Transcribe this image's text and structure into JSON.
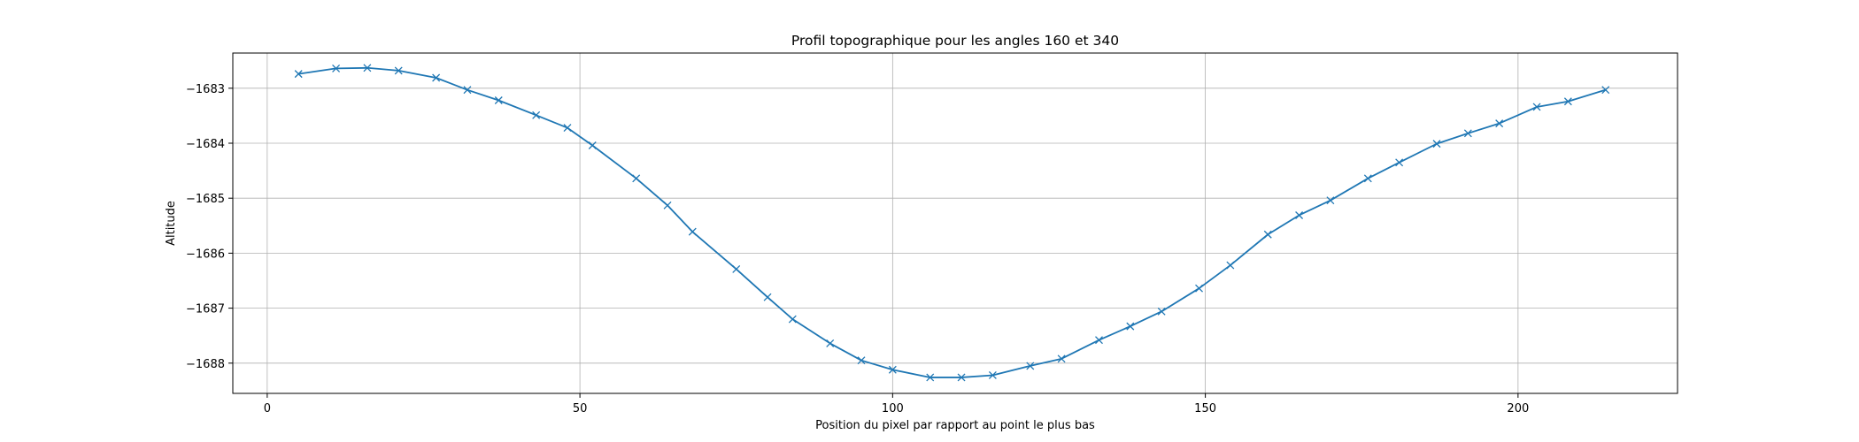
{
  "chart_data": {
    "type": "line",
    "title": "Profil topographique pour les angles 160 et 340",
    "xlabel": "Position du pixel par rapport au point le plus bas",
    "ylabel": "Altitude",
    "xlim": [
      -5.5,
      225.5
    ],
    "ylim": [
      -1688.55,
      -1682.36
    ],
    "xticks": [
      0,
      50,
      100,
      150,
      200
    ],
    "yticks": [
      -1688,
      -1687,
      -1686,
      -1685,
      -1684,
      -1683
    ],
    "xtick_labels": [
      "0",
      "50",
      "100",
      "150",
      "200"
    ],
    "ytick_labels": [
      "−1688",
      "−1687",
      "−1686",
      "−1685",
      "−1684",
      "−1683"
    ],
    "grid": true,
    "marker": "x",
    "color": "#1f77b4",
    "series": [
      {
        "x": [
          5,
          11,
          16,
          21,
          27,
          32,
          37,
          43,
          48,
          52,
          59,
          64,
          68,
          75,
          80,
          84,
          90,
          95,
          100,
          106,
          111,
          116,
          122,
          127,
          133,
          138,
          143,
          149,
          154,
          160,
          165,
          170,
          176,
          181,
          187,
          192,
          197,
          203,
          208,
          214
        ],
        "y": [
          -1682.74,
          -1682.64,
          -1682.63,
          -1682.68,
          -1682.81,
          -1683.03,
          -1683.22,
          -1683.49,
          -1683.72,
          -1684.04,
          -1684.64,
          -1685.13,
          -1685.61,
          -1686.29,
          -1686.8,
          -1687.2,
          -1687.64,
          -1687.95,
          -1688.12,
          -1688.26,
          -1688.26,
          -1688.22,
          -1688.05,
          -1687.92,
          -1687.58,
          -1687.33,
          -1687.06,
          -1686.64,
          -1686.22,
          -1685.66,
          -1685.31,
          -1685.04,
          -1684.64,
          -1684.35,
          -1684.01,
          -1683.82,
          -1683.64,
          -1683.34,
          -1683.24,
          -1683.03
        ]
      }
    ]
  }
}
